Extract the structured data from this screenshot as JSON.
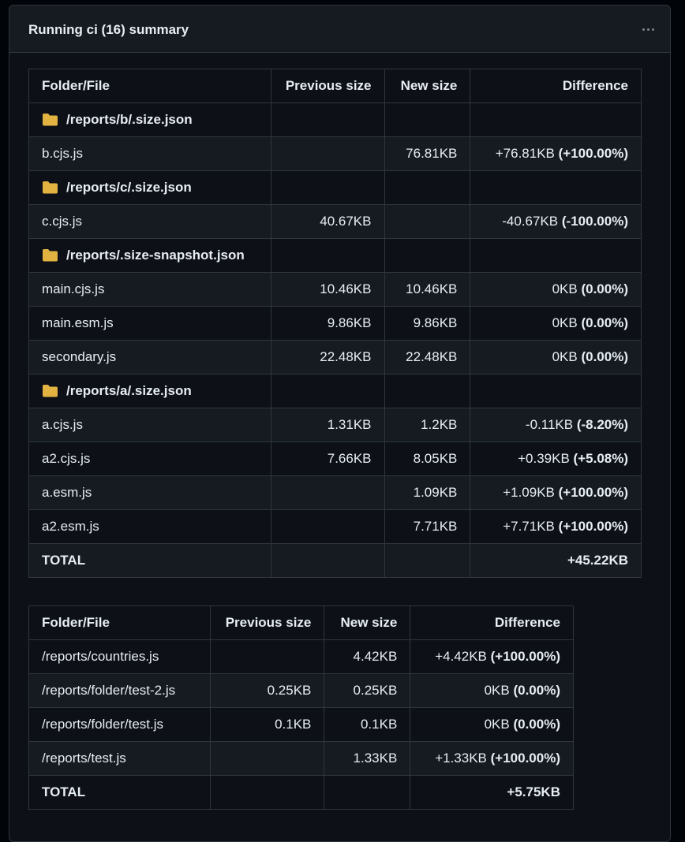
{
  "header": {
    "title": "Running ci (16) summary",
    "menu_icon": "kebab-horizontal-icon"
  },
  "colors": {
    "folder_icon": "#e3b341",
    "border": "#30363d",
    "row_alt": "#161b22"
  },
  "table1": {
    "columns": [
      "Folder/File",
      "Previous size",
      "New size",
      "Difference"
    ],
    "rows": [
      {
        "type": "folder",
        "name": "/reports/b/.size.json"
      },
      {
        "type": "file",
        "name": "b.cjs.js",
        "prev": "",
        "new": "76.81KB",
        "diff": "+76.81KB",
        "pct": "(+100.00%)"
      },
      {
        "type": "folder",
        "name": "/reports/c/.size.json"
      },
      {
        "type": "file",
        "name": "c.cjs.js",
        "prev": "40.67KB",
        "new": "",
        "diff": "-40.67KB",
        "pct": "(-100.00%)"
      },
      {
        "type": "folder",
        "name": "/reports/.size-snapshot.json"
      },
      {
        "type": "file",
        "name": "main.cjs.js",
        "prev": "10.46KB",
        "new": "10.46KB",
        "diff": "0KB",
        "pct": "(0.00%)"
      },
      {
        "type": "file",
        "name": "main.esm.js",
        "prev": "9.86KB",
        "new": "9.86KB",
        "diff": "0KB",
        "pct": "(0.00%)"
      },
      {
        "type": "file",
        "name": "secondary.js",
        "prev": "22.48KB",
        "new": "22.48KB",
        "diff": "0KB",
        "pct": "(0.00%)"
      },
      {
        "type": "folder",
        "name": "/reports/a/.size.json"
      },
      {
        "type": "file",
        "name": "a.cjs.js",
        "prev": "1.31KB",
        "new": "1.2KB",
        "diff": "-0.11KB",
        "pct": "(-8.20%)"
      },
      {
        "type": "file",
        "name": "a2.cjs.js",
        "prev": "7.66KB",
        "new": "8.05KB",
        "diff": "+0.39KB",
        "pct": "(+5.08%)"
      },
      {
        "type": "file",
        "name": "a.esm.js",
        "prev": "",
        "new": "1.09KB",
        "diff": "+1.09KB",
        "pct": "(+100.00%)"
      },
      {
        "type": "file",
        "name": "a2.esm.js",
        "prev": "",
        "new": "7.71KB",
        "diff": "+7.71KB",
        "pct": "(+100.00%)"
      },
      {
        "type": "total",
        "name": "TOTAL",
        "diff": "+45.22KB"
      }
    ]
  },
  "table2": {
    "columns": [
      "Folder/File",
      "Previous size",
      "New size",
      "Difference"
    ],
    "rows": [
      {
        "type": "file",
        "name": "/reports/countries.js",
        "prev": "",
        "new": "4.42KB",
        "diff": "+4.42KB",
        "pct": "(+100.00%)"
      },
      {
        "type": "file",
        "name": "/reports/folder/test-2.js",
        "prev": "0.25KB",
        "new": "0.25KB",
        "diff": "0KB",
        "pct": "(0.00%)"
      },
      {
        "type": "file",
        "name": "/reports/folder/test.js",
        "prev": "0.1KB",
        "new": "0.1KB",
        "diff": "0KB",
        "pct": "(0.00%)"
      },
      {
        "type": "file",
        "name": "/reports/test.js",
        "prev": "",
        "new": "1.33KB",
        "diff": "+1.33KB",
        "pct": "(+100.00%)"
      },
      {
        "type": "total",
        "name": "TOTAL",
        "diff": "+5.75KB"
      }
    ]
  }
}
